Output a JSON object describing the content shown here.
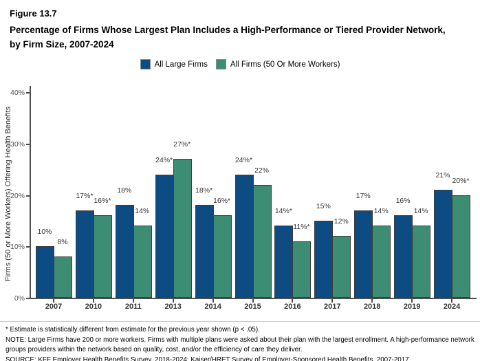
{
  "figure": {
    "number": "Figure 13.7",
    "title": "Percentage of Firms Whose Largest Plan Includes a High-Performance or Tiered Provider Network, by Firm Size, 2007-2024"
  },
  "colors": {
    "large_firms_blue": "#0d4c82",
    "all_firms_green": "#3d8c74",
    "axis": "#4d4d4d"
  },
  "legend": [
    {
      "label": "All Large Firms",
      "color": "#0d4c82"
    },
    {
      "label": "All Firms (50 Or More Workers)",
      "color": "#3d8c74"
    }
  ],
  "chart_data": {
    "type": "bar",
    "categories": [
      "2007",
      "2010",
      "2011",
      "2013",
      "2014",
      "2015",
      "2016",
      "2017",
      "2018",
      "2019",
      "2024"
    ],
    "series": [
      {
        "name": "All Large Firms",
        "color": "#0d4c82",
        "values": [
          10,
          17,
          18,
          24,
          18,
          24,
          14,
          15,
          17,
          16,
          21
        ],
        "labels": [
          "10%",
          "17%*",
          "18%",
          "24%*",
          "18%*",
          "24%*",
          "14%*",
          "15%",
          "17%",
          "16%",
          "21%"
        ]
      },
      {
        "name": "All Firms (50 Or More Workers)",
        "color": "#3d8c74",
        "values": [
          8,
          16,
          14,
          27,
          16,
          22,
          11,
          12,
          14,
          14,
          20
        ],
        "labels": [
          "8%",
          "16%*",
          "14%",
          "27%*",
          "16%*",
          "22%",
          "11%*",
          "12%",
          "14%",
          "14%",
          "20%*"
        ]
      }
    ],
    "title": "Percentage of Firms Whose Largest Plan Includes a High-Performance or Tiered Provider Network, by Firm Size, 2007-2024",
    "xlabel": "",
    "ylabel": "Firms (50 or More Workers) Offering Health Benefits",
    "yticks": [
      "0%",
      "10%",
      "20%",
      "30%",
      "40%"
    ],
    "ytick_values": [
      0,
      10,
      20,
      30,
      40
    ],
    "ylim": [
      0,
      40
    ],
    "grid": false,
    "legend_position": "top"
  },
  "footnotes": {
    "asterisk": "* Estimate is statistically different from estimate for the previous year shown (p < .05).",
    "note": "NOTE: Large Firms have 200 or more workers.  Firms with multiple plans were asked about their plan with the largest enrollment.  A high-performance network groups providers within the network based on quality, cost, and/or the efficiency of care they deliver.",
    "source": "SOURCE: KFF Employer Health Benefits Survey, 2018-2024; Kaiser/HRET Survey of Employer-Sponsored Health Benefits, 2007-2017"
  }
}
